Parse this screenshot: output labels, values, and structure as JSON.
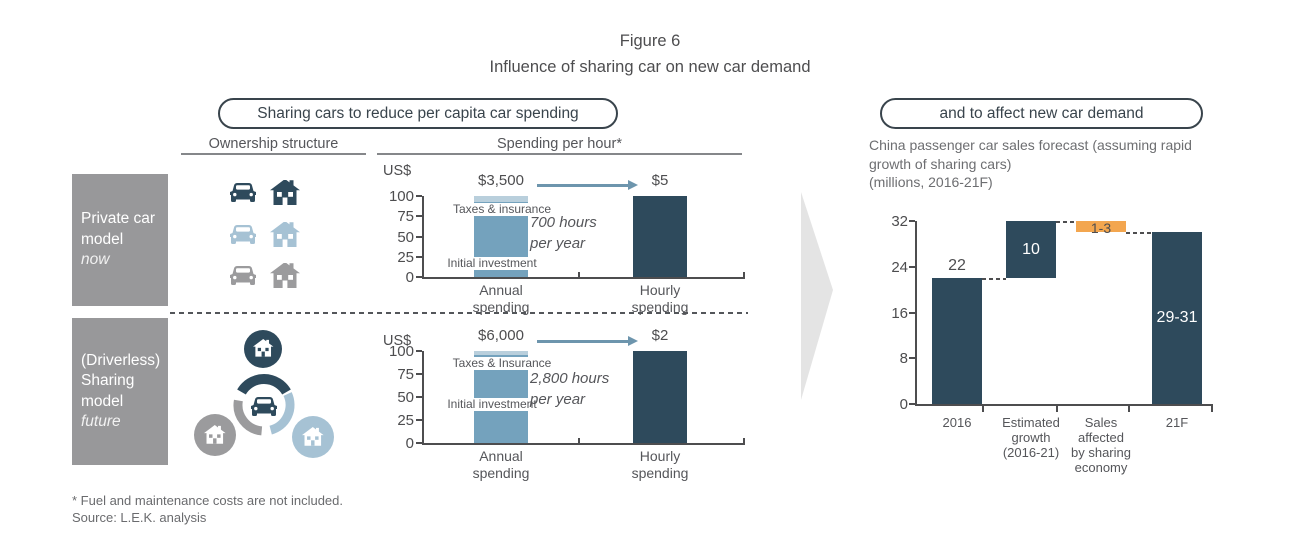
{
  "title": {
    "line1": "Figure 6",
    "line2": "Influence of sharing car on new car demand"
  },
  "left_section": {
    "pill_label": "Sharing cars to reduce per capita car spending",
    "col_headers": {
      "ownership": "Ownership structure",
      "spending": "Spending per hour*"
    },
    "private": {
      "line1": "Private car",
      "line2": "model",
      "line3": "now"
    },
    "sharing": {
      "line1": "(Driverless)",
      "line2": "Sharing",
      "line3": "model",
      "line4": "future"
    },
    "ownership_icon_rows": [
      {
        "icons": [
          "car-icon",
          "house-icon"
        ],
        "color": "dark_navy"
      },
      {
        "icons": [
          "car-icon",
          "house-icon"
        ],
        "color": "light_blue_icon"
      },
      {
        "icons": [
          "car-icon",
          "house-icon"
        ],
        "color": "gray_icon"
      }
    ],
    "sharing_diagram": {
      "center_icon": "car-icon",
      "node_icons": [
        "house-icon",
        "house-icon",
        "house-icon"
      ],
      "node_colors": [
        "dark_navy",
        "gray_icon",
        "light_blue_icon"
      ]
    }
  },
  "right_section": {
    "pill_label": "and to affect new car demand",
    "subtitle_line1": "China passenger car sales forecast  (assuming rapid",
    "subtitle_line2": "growth of sharing cars)",
    "subtitle_line3": "(millions, 2016-21F)"
  },
  "footnotes": [
    "* Fuel and maintenance costs are not included.",
    "Source: L.E.K. analysis"
  ],
  "colors": {
    "dark_navy": "#2e4a5c",
    "medium_blue": "#74a2bd",
    "light_blue": "#b9cfdc",
    "light_blue_icon": "#a6c2d4",
    "gray_icon": "#9b9b9d",
    "box_gray": "#98989a",
    "orange": "#f3a64f",
    "big_arrow_gray": "#e4e4e4",
    "steel_arrow": "#6d95ad",
    "axis": "#4d4d4f"
  },
  "chart_data": [
    {
      "type": "bar",
      "name": "private-car-spending-per-hour",
      "unit": "US$",
      "ylim": [
        0,
        100
      ],
      "yticks": [
        100,
        75,
        50,
        25,
        0
      ],
      "categories": [
        [
          "Annual",
          "spending"
        ],
        [
          "Hourly",
          "spending"
        ]
      ],
      "bars": [
        {
          "value_label": "$3,500",
          "display_height": 100,
          "style": "stacked",
          "segments": [
            {
              "label": "Initial investment",
              "color": "medium_blue"
            },
            {
              "label": "Taxes & insurance",
              "color": "light_blue",
              "height_units": 7
            }
          ]
        },
        {
          "value_label": "$5",
          "display_height": 100,
          "style": "solid",
          "color": "dark_navy"
        }
      ],
      "annotation_lines": [
        "700 hours",
        "per year"
      ]
    },
    {
      "type": "bar",
      "name": "sharing-model-spending-per-hour",
      "unit": "US$",
      "ylim": [
        0,
        100
      ],
      "yticks": [
        100,
        75,
        50,
        25,
        0
      ],
      "categories": [
        [
          "Annual",
          "spending"
        ],
        [
          "Hourly",
          "spending"
        ]
      ],
      "bars": [
        {
          "value_label": "$6,000",
          "display_height": 100,
          "style": "stacked",
          "segments": [
            {
              "label": "Initial investment",
              "color": "medium_blue"
            },
            {
              "label": "Taxes & Insurance",
              "color": "light_blue",
              "height_units": 4
            }
          ]
        },
        {
          "value_label": "$2",
          "display_height": 100,
          "style": "solid",
          "color": "dark_navy"
        }
      ],
      "annotation_lines": [
        "2,800 hours",
        "per year"
      ]
    },
    {
      "type": "waterfall",
      "name": "china-passenger-car-sales-forecast",
      "ylim": [
        0,
        32
      ],
      "yticks": [
        32,
        24,
        16,
        8,
        0
      ],
      "categories": [
        [
          "2016"
        ],
        [
          "Estimated",
          "growth",
          "(2016-21)"
        ],
        [
          "Sales",
          "affected",
          "by sharing",
          "economy"
        ],
        [
          "21F"
        ]
      ],
      "bars": [
        {
          "label": "22",
          "start": 0,
          "end": 22,
          "color": "dark_navy",
          "label_pos": "above",
          "label_color": "#4d4d4f"
        },
        {
          "label": "10",
          "start": 22,
          "end": 32,
          "color": "dark_navy",
          "label_pos": "inside",
          "label_color": "#ffffff"
        },
        {
          "label": "1-3",
          "start": 30,
          "end": 32,
          "color": "orange",
          "label_pos": "inside",
          "label_color": "#4d4d4f"
        },
        {
          "label": "29-31",
          "start": 0,
          "end": 30,
          "color": "dark_navy",
          "label_pos": "inside",
          "label_color": "#ffffff"
        }
      ],
      "connectors": [
        {
          "level": 22,
          "from": 0,
          "to": 1
        },
        {
          "level": 32,
          "from": 1,
          "to": 2
        },
        {
          "level": 30,
          "from": 2,
          "to": 3
        }
      ]
    }
  ]
}
